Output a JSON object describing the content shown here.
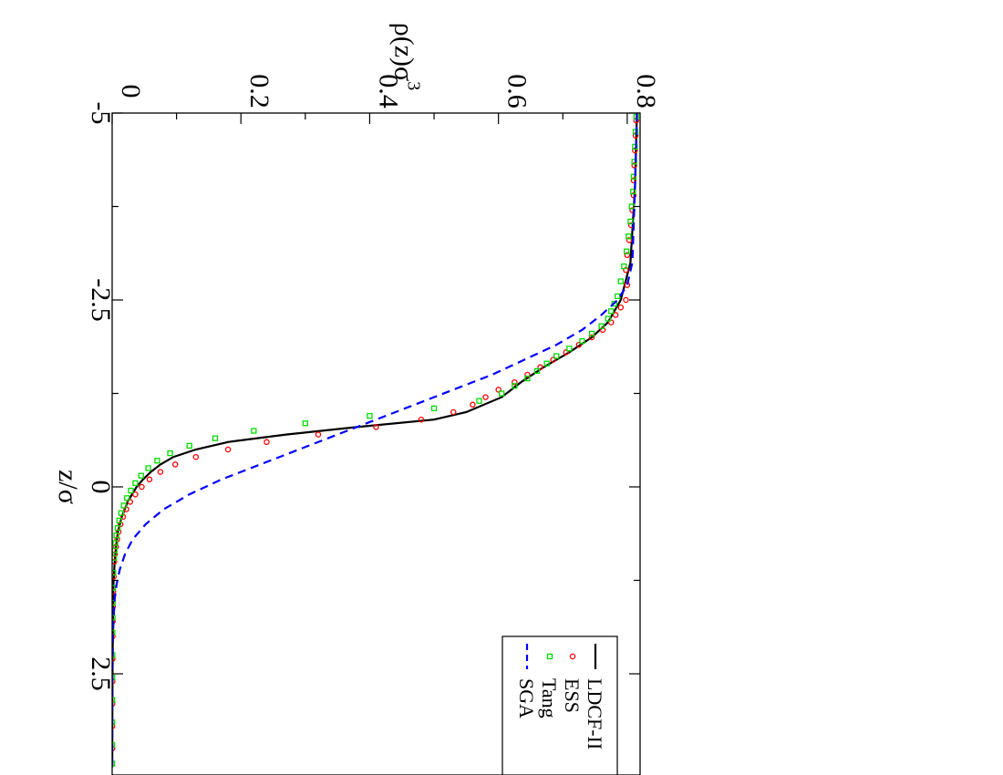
{
  "chart_data": {
    "type": "line",
    "orientation": "rotated-90-clockwise",
    "xlabel": "z/σ",
    "ylabel": "ρ(z)σ",
    "ylabel_superscript": "3",
    "xlim": [
      -5,
      3.75
    ],
    "ylim": [
      0,
      0.82
    ],
    "xticks": [
      {
        "value": -5,
        "label": "-5"
      },
      {
        "value": -2.5,
        "label": "-2.5"
      },
      {
        "value": 0,
        "label": "0"
      },
      {
        "value": 2.5,
        "label": "2.5"
      }
    ],
    "yticks": [
      {
        "value": 0,
        "label": "0"
      },
      {
        "value": 0.2,
        "label": "0.2"
      },
      {
        "value": 0.4,
        "label": "0.4"
      },
      {
        "value": 0.6,
        "label": "0.6"
      },
      {
        "value": 0.8,
        "label": "0.8"
      }
    ],
    "grid": false,
    "legend_position": "bottom-right",
    "series": [
      {
        "name": "LDCF-II",
        "style": "solid",
        "color": "#000000",
        "x": [
          -5,
          -4,
          -3,
          -2.5,
          -2.2,
          -2.0,
          -1.8,
          -1.6,
          -1.4,
          -1.2,
          -1.0,
          -0.9,
          -0.8,
          -0.7,
          -0.6,
          -0.5,
          -0.4,
          -0.3,
          -0.2,
          -0.1,
          0,
          0.2,
          0.4,
          0.6,
          0.8,
          1.0,
          1.3,
          1.6,
          2.0,
          2.5,
          3.0,
          3.75
        ],
        "y": [
          0.815,
          0.812,
          0.805,
          0.79,
          0.77,
          0.745,
          0.71,
          0.67,
          0.635,
          0.605,
          0.55,
          0.5,
          0.38,
          0.27,
          0.18,
          0.13,
          0.095,
          0.075,
          0.06,
          0.048,
          0.038,
          0.024,
          0.015,
          0.009,
          0.006,
          0.004,
          0.002,
          0.0015,
          0.001,
          0.0005,
          0.0003,
          0.0002
        ]
      },
      {
        "name": "ESS",
        "style": "circle",
        "color": "#ff0000",
        "x": [
          -4.9,
          -4.7,
          -4.5,
          -4.3,
          -4.1,
          -3.9,
          -3.7,
          -3.5,
          -3.3,
          -3.1,
          -2.9,
          -2.7,
          -2.5,
          -2.4,
          -2.3,
          -2.2,
          -2.1,
          -2.0,
          -1.9,
          -1.8,
          -1.7,
          -1.6,
          -1.5,
          -1.4,
          -1.3,
          -1.2,
          -1.1,
          -1.0,
          -0.9,
          -0.8,
          -0.7,
          -0.6,
          -0.5,
          -0.4,
          -0.3,
          -0.2,
          -0.1,
          0,
          0.1,
          0.2,
          0.3,
          0.4,
          0.5,
          0.6,
          0.7,
          0.8,
          0.9,
          1.0,
          1.2,
          1.4,
          1.6,
          1.8,
          2.0,
          2.3,
          2.6,
          2.9,
          3.2,
          3.5
        ],
        "y": [
          0.814,
          0.813,
          0.812,
          0.811,
          0.81,
          0.81,
          0.808,
          0.806,
          0.803,
          0.8,
          0.798,
          0.8,
          0.798,
          0.79,
          0.782,
          0.775,
          0.762,
          0.745,
          0.725,
          0.705,
          0.685,
          0.665,
          0.645,
          0.625,
          0.6,
          0.58,
          0.56,
          0.53,
          0.48,
          0.41,
          0.32,
          0.24,
          0.18,
          0.13,
          0.098,
          0.075,
          0.058,
          0.046,
          0.036,
          0.028,
          0.022,
          0.017,
          0.013,
          0.01,
          0.008,
          0.006,
          0.0045,
          0.0035,
          0.0025,
          0.0018,
          0.0013,
          0.001,
          0.0008,
          0.0006,
          0.0005,
          0.0004,
          0.0003,
          0.0002
        ]
      },
      {
        "name": "Tang",
        "style": "square",
        "color": "#00dd00",
        "x": [
          -4.95,
          -4.75,
          -4.55,
          -4.35,
          -4.15,
          -3.95,
          -3.75,
          -3.55,
          -3.35,
          -3.15,
          -2.95,
          -2.75,
          -2.55,
          -2.45,
          -2.35,
          -2.25,
          -2.15,
          -2.05,
          -1.95,
          -1.85,
          -1.75,
          -1.65,
          -1.55,
          -1.45,
          -1.35,
          -1.25,
          -1.15,
          -1.05,
          -0.95,
          -0.85,
          -0.75,
          -0.65,
          -0.55,
          -0.45,
          -0.35,
          -0.25,
          -0.15,
          -0.05,
          0.05,
          0.15,
          0.25,
          0.35,
          0.45,
          0.55,
          0.65,
          0.75,
          0.85,
          0.95,
          1.15,
          1.35,
          1.55,
          1.75,
          1.95,
          2.25,
          2.55,
          2.85,
          3.15,
          3.45,
          3.7
        ],
        "y": [
          0.814,
          0.813,
          0.812,
          0.811,
          0.81,
          0.809,
          0.807,
          0.805,
          0.802,
          0.799,
          0.795,
          0.79,
          0.785,
          0.78,
          0.775,
          0.77,
          0.76,
          0.745,
          0.73,
          0.71,
          0.69,
          0.675,
          0.66,
          0.645,
          0.625,
          0.605,
          0.57,
          0.5,
          0.4,
          0.3,
          0.22,
          0.16,
          0.12,
          0.09,
          0.07,
          0.056,
          0.045,
          0.036,
          0.029,
          0.023,
          0.018,
          0.014,
          0.011,
          0.0085,
          0.0065,
          0.005,
          0.004,
          0.003,
          0.002,
          0.0015,
          0.0011,
          0.0008,
          0.0006,
          0.0005,
          0.0004,
          0.0003,
          0.0002,
          0.0002,
          0.0001
        ]
      },
      {
        "name": "SGA",
        "style": "dashed",
        "color": "#0000ff",
        "x": [
          -5,
          -4,
          -3,
          -2.7,
          -2.5,
          -2.3,
          -2.1,
          -1.9,
          -1.7,
          -1.5,
          -1.3,
          -1.1,
          -0.9,
          -0.7,
          -0.5,
          -0.3,
          -0.1,
          0.1,
          0.3,
          0.5,
          0.7,
          0.9,
          1.1,
          1.3,
          1.5,
          1.8,
          2.1,
          2.5,
          3.0,
          3.75
        ],
        "y": [
          0.815,
          0.812,
          0.808,
          0.8,
          0.785,
          0.76,
          0.73,
          0.69,
          0.64,
          0.59,
          0.53,
          0.47,
          0.41,
          0.35,
          0.29,
          0.23,
          0.17,
          0.12,
          0.08,
          0.052,
          0.032,
          0.02,
          0.012,
          0.007,
          0.004,
          0.002,
          0.001,
          0.0005,
          0.0002,
          0.0001
        ]
      }
    ]
  }
}
